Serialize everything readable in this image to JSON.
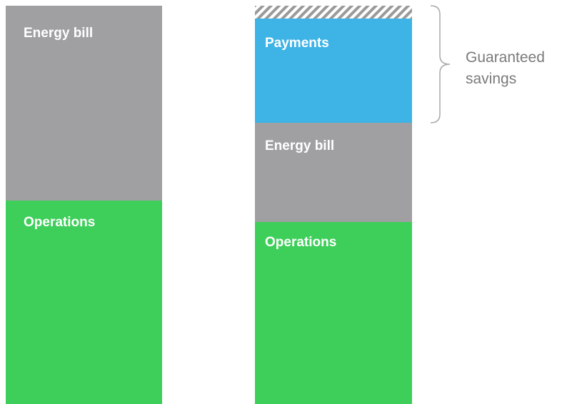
{
  "left_column": {
    "segments": [
      "Energy bill",
      "Operations"
    ]
  },
  "right_column": {
    "segments": [
      "Payments",
      "Energy bill",
      "Operations"
    ]
  },
  "annotation": {
    "lines": [
      "Guaranteed",
      "savings"
    ]
  }
}
